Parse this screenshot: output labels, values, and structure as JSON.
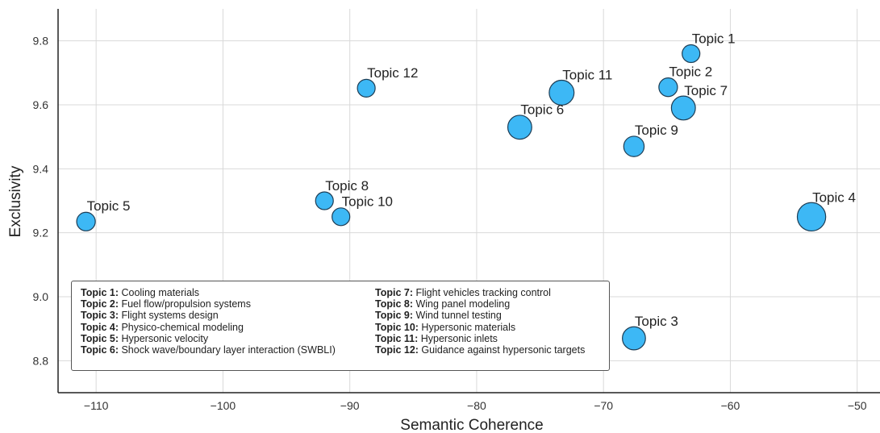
{
  "chart_data": {
    "type": "scatter",
    "xlabel": "Semantic Coherence",
    "ylabel": "Exclusivity",
    "xlim": [
      -113,
      -48.2
    ],
    "ylim": [
      8.7,
      9.9
    ],
    "x_ticks": [
      -110,
      -100,
      -90,
      -80,
      -70,
      -60,
      -50
    ],
    "x_tick_labels": [
      "−110",
      "−100",
      "−90",
      "−80",
      "−70",
      "−60",
      "−50"
    ],
    "y_ticks": [
      8.8,
      9.0,
      9.2,
      9.4,
      9.6,
      9.8
    ],
    "y_tick_labels": [
      "8.8",
      "9.0",
      "9.2",
      "9.4",
      "9.6",
      "9.8"
    ],
    "grid": true,
    "marker_color": "#3db8f5",
    "marker_edge_color": "#1d3d55",
    "points": [
      {
        "label": "Topic 1",
        "x": -63.1,
        "y": 9.76,
        "size": 1.0
      },
      {
        "label": "Topic 2",
        "x": -64.9,
        "y": 9.655,
        "size": 1.05
      },
      {
        "label": "Topic 3",
        "x": -67.6,
        "y": 8.87,
        "size": 1.3
      },
      {
        "label": "Topic 4",
        "x": -53.6,
        "y": 9.25,
        "size": 1.6
      },
      {
        "label": "Topic 5",
        "x": -110.8,
        "y": 9.235,
        "size": 1.05
      },
      {
        "label": "Topic 6",
        "x": -76.6,
        "y": 9.53,
        "size": 1.35
      },
      {
        "label": "Topic 7",
        "x": -63.7,
        "y": 9.59,
        "size": 1.35
      },
      {
        "label": "Topic 8",
        "x": -92.0,
        "y": 9.3,
        "size": 1.0
      },
      {
        "label": "Topic 9",
        "x": -67.6,
        "y": 9.47,
        "size": 1.15
      },
      {
        "label": "Topic 10",
        "x": -90.7,
        "y": 9.25,
        "size": 1.0
      },
      {
        "label": "Topic 11",
        "x": -73.3,
        "y": 9.638,
        "size": 1.4
      },
      {
        "label": "Topic 12",
        "x": -88.7,
        "y": 9.652,
        "size": 1.0
      }
    ],
    "legend_placement": "lower-left",
    "legend": [
      {
        "key": "Topic 1:",
        "text": "Cooling materials"
      },
      {
        "key": "Topic 2:",
        "text": "Fuel flow/propulsion systems"
      },
      {
        "key": "Topic 3:",
        "text": "Flight systems design"
      },
      {
        "key": "Topic 4:",
        "text": "Physico-chemical modeling"
      },
      {
        "key": "Topic 5:",
        "text": "Hypersonic velocity"
      },
      {
        "key": "Topic 6:",
        "text": "Shock wave/boundary layer interaction (SWBLI)"
      },
      {
        "key": "Topic 7:",
        "text": "Flight vehicles tracking control"
      },
      {
        "key": "Topic 8:",
        "text": "Wing panel modeling"
      },
      {
        "key": "Topic 9:",
        "text": "Wind tunnel testing"
      },
      {
        "key": "Topic 10:",
        "text": "Hypersonic materials"
      },
      {
        "key": "Topic 11:",
        "text": "Hypersonic inlets"
      },
      {
        "key": "Topic 12:",
        "text": "Guidance against hypersonic targets"
      }
    ]
  }
}
